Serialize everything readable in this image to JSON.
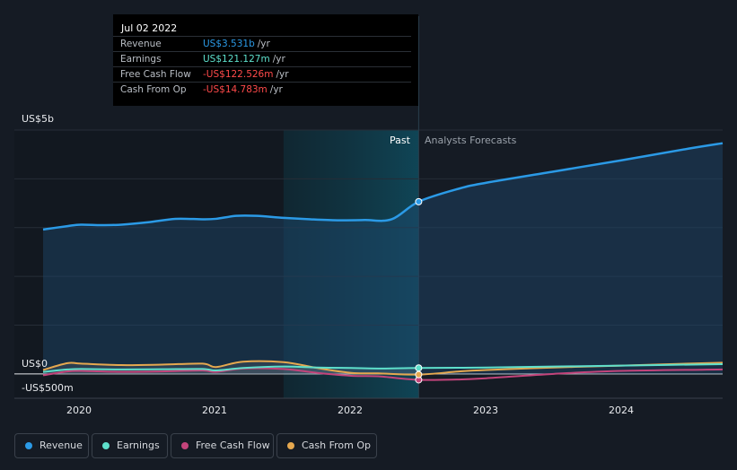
{
  "tooltip": {
    "date": "Jul 02 2022",
    "rows": [
      {
        "label": "Revenue",
        "value": "US$3.531b",
        "unit": "/yr",
        "color": "#2b9ae6"
      },
      {
        "label": "Earnings",
        "value": "US$121.127m",
        "unit": "/yr",
        "color": "#5ee0cc"
      },
      {
        "label": "Free Cash Flow",
        "value": "-US$122.526m",
        "unit": "/yr",
        "color": "#ff4a4a"
      },
      {
        "label": "Cash From Op",
        "value": "-US$14.783m",
        "unit": "/yr",
        "color": "#ff4a4a"
      }
    ]
  },
  "labels": {
    "past": "Past",
    "forecast": "Analysts Forecasts"
  },
  "legend": [
    {
      "label": "Revenue",
      "color": "#2b9ae6"
    },
    {
      "label": "Earnings",
      "color": "#5ee0cc"
    },
    {
      "label": "Free Cash Flow",
      "color": "#c3447b"
    },
    {
      "label": "Cash From Op",
      "color": "#e5a84f"
    }
  ],
  "chart_data": {
    "type": "line",
    "title": "",
    "xlabel": "",
    "ylabel": "",
    "y_tick_labels": [
      "US$5b",
      "US$0",
      "-US$500m"
    ],
    "x_tick_labels": [
      "2020",
      "2021",
      "2022",
      "2023",
      "2024"
    ],
    "xlim": [
      2019.72,
      2024.75
    ],
    "ylim": [
      -500,
      5000
    ],
    "past_end": 2022.5,
    "highlight_start": 2021.5,
    "grid": true,
    "series": [
      {
        "name": "Revenue",
        "color": "#2b9ae6",
        "points": [
          [
            2019.72,
            2960
          ],
          [
            2019.9,
            3030
          ],
          [
            2020.0,
            3060
          ],
          [
            2020.15,
            3050
          ],
          [
            2020.3,
            3060
          ],
          [
            2020.5,
            3110
          ],
          [
            2020.7,
            3180
          ],
          [
            2020.9,
            3170
          ],
          [
            2021.0,
            3180
          ],
          [
            2021.15,
            3240
          ],
          [
            2021.3,
            3240
          ],
          [
            2021.5,
            3200
          ],
          [
            2021.7,
            3170
          ],
          [
            2021.9,
            3150
          ],
          [
            2022.1,
            3155
          ],
          [
            2022.3,
            3170
          ],
          [
            2022.5,
            3531
          ],
          [
            2022.8,
            3800
          ],
          [
            2023.0,
            3920
          ],
          [
            2023.5,
            4150
          ],
          [
            2024.0,
            4380
          ],
          [
            2024.5,
            4620
          ],
          [
            2024.75,
            4730
          ]
        ]
      },
      {
        "name": "Earnings",
        "color": "#5ee0cc",
        "points": [
          [
            2019.72,
            40
          ],
          [
            2019.9,
            90
          ],
          [
            2020.0,
            100
          ],
          [
            2020.3,
            90
          ],
          [
            2020.6,
            95
          ],
          [
            2020.9,
            100
          ],
          [
            2021.0,
            70
          ],
          [
            2021.2,
            120
          ],
          [
            2021.5,
            150
          ],
          [
            2021.75,
            130
          ],
          [
            2022.0,
            120
          ],
          [
            2022.2,
            110
          ],
          [
            2022.5,
            121.127
          ],
          [
            2023.0,
            130
          ],
          [
            2023.5,
            150
          ],
          [
            2024.0,
            170
          ],
          [
            2024.75,
            200
          ]
        ]
      },
      {
        "name": "Free Cash Flow",
        "color": "#c3447b",
        "points": [
          [
            2019.72,
            -30
          ],
          [
            2019.9,
            50
          ],
          [
            2020.0,
            60
          ],
          [
            2020.3,
            40
          ],
          [
            2020.6,
            50
          ],
          [
            2020.9,
            70
          ],
          [
            2021.0,
            40
          ],
          [
            2021.2,
            110
          ],
          [
            2021.5,
            100
          ],
          [
            2021.75,
            20
          ],
          [
            2022.0,
            -40
          ],
          [
            2022.2,
            -50
          ],
          [
            2022.5,
            -122.526
          ],
          [
            2022.8,
            -115
          ],
          [
            2023.0,
            -90
          ],
          [
            2023.5,
            0
          ],
          [
            2024.0,
            60
          ],
          [
            2024.75,
            90
          ]
        ]
      },
      {
        "name": "Cash From Op",
        "color": "#e5a84f",
        "points": [
          [
            2019.72,
            80
          ],
          [
            2019.9,
            220
          ],
          [
            2020.0,
            210
          ],
          [
            2020.3,
            180
          ],
          [
            2020.6,
            190
          ],
          [
            2020.9,
            210
          ],
          [
            2021.0,
            140
          ],
          [
            2021.2,
            250
          ],
          [
            2021.5,
            240
          ],
          [
            2021.75,
            120
          ],
          [
            2022.0,
            20
          ],
          [
            2022.2,
            10
          ],
          [
            2022.5,
            -14.783
          ],
          [
            2022.8,
            50
          ],
          [
            2023.0,
            80
          ],
          [
            2023.5,
            130
          ],
          [
            2024.0,
            170
          ],
          [
            2024.75,
            230
          ]
        ]
      }
    ]
  }
}
